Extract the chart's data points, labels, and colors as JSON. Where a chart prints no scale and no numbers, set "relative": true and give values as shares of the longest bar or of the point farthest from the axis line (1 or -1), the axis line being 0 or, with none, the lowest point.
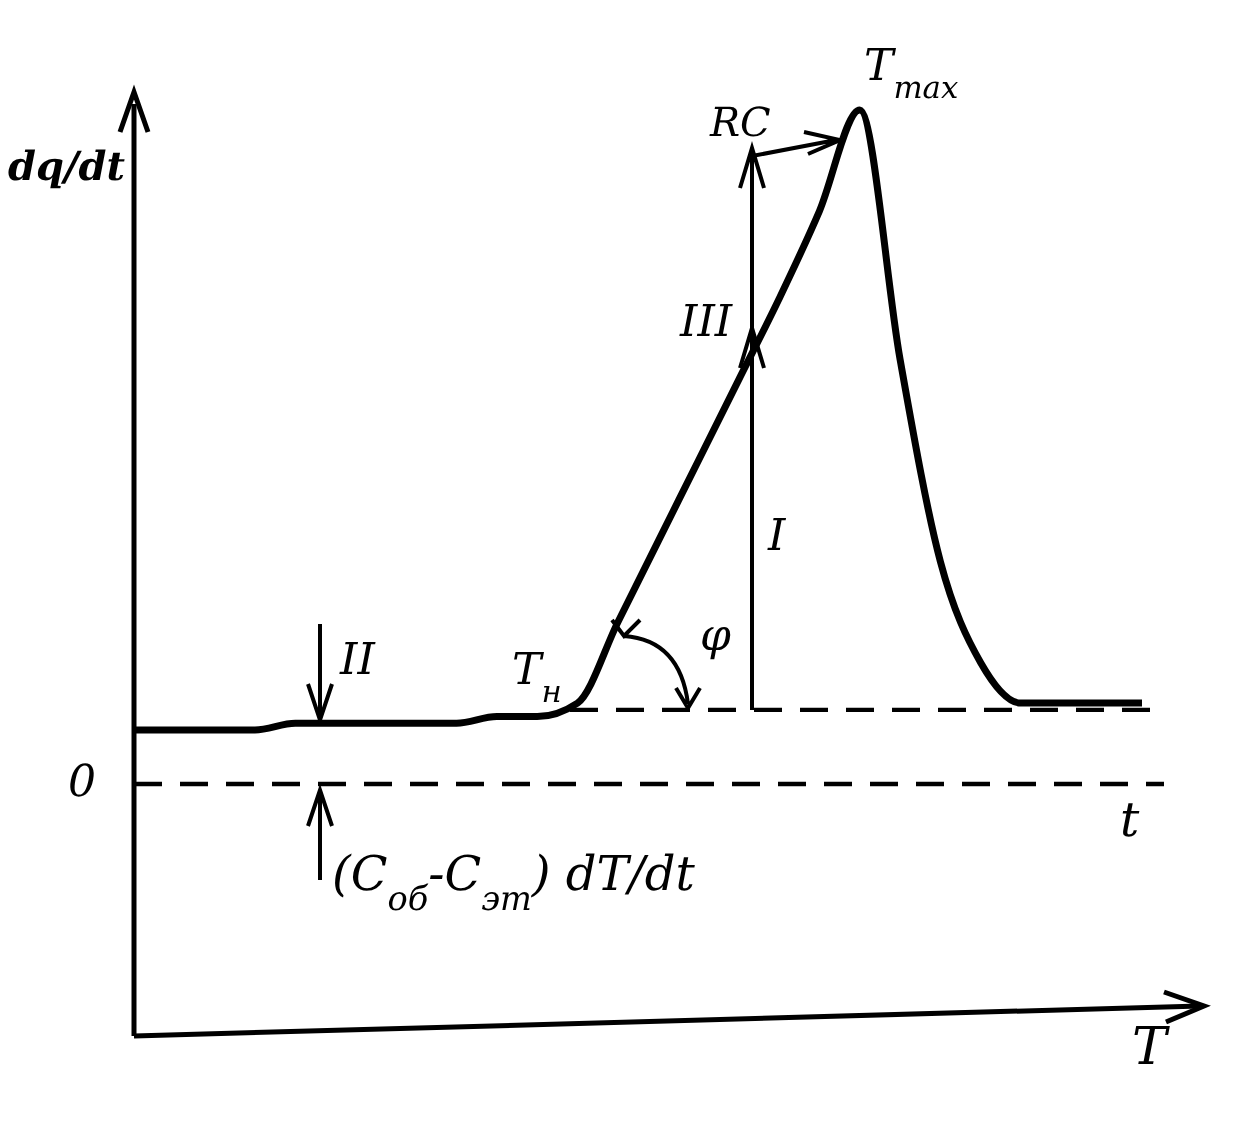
{
  "chart_data": {
    "type": "line",
    "relative": true,
    "ylabel": "dq/dt",
    "xlabel": "T",
    "categories": [
      null,
      null,
      null,
      null,
      null,
      null,
      null,
      null,
      null,
      null,
      null,
      null,
      null,
      null,
      null,
      null,
      null,
      null,
      null,
      null,
      null,
      null,
      null,
      null,
      null,
      null
    ],
    "series": [
      {
        "color": "#000000",
        "values": [
          0.08,
          0.08,
          0.08,
          0.08,
          0.09,
          0.09,
          0.09,
          0.09,
          0.09,
          0.1,
          0.1,
          0.12,
          0.24,
          0.36,
          0.48,
          0.6,
          0.72,
          0.85,
          1,
          0.63,
          0.33,
          0.18,
          0.12,
          0.12,
          0.12,
          0.12
        ]
      }
    ],
    "ref_lines": [
      {
        "axis": "y",
        "value": 0,
        "label": "0",
        "line_style": "dashed"
      },
      {
        "axis": "y",
        "value": 0.11,
        "line_style": "dashed"
      }
    ],
    "annotations": [
      "T$_{max}$",
      "RC",
      "III",
      "I",
      "II",
      "T$_{н}$",
      "φ",
      "t",
      "(C$_{об}$-C$_{эт}$) dT/dt"
    ],
    "marker": "none",
    "line_style": "solid"
  }
}
